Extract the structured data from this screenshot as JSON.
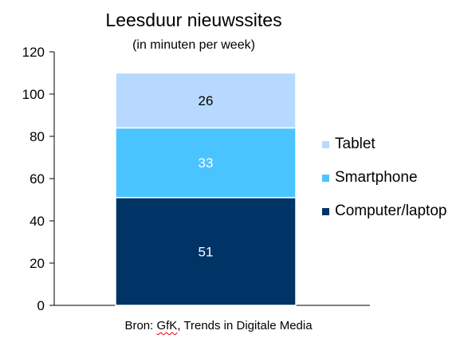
{
  "chart_data": {
    "type": "bar",
    "stacked": true,
    "title": "Leesduur nieuwssites",
    "subtitle": "(in minuten per week)",
    "categories": [
      ""
    ],
    "series": [
      {
        "name": "Computer/laptop",
        "values": [
          51
        ],
        "color": "#003366"
      },
      {
        "name": "Smartphone",
        "values": [
          33
        ],
        "color": "#4ac4ff"
      },
      {
        "name": "Tablet",
        "values": [
          26
        ],
        "color": "#b8d9ff"
      }
    ],
    "ylim": [
      0,
      120
    ],
    "yticks": [
      "0",
      "20",
      "40",
      "60",
      "80",
      "100",
      "120"
    ],
    "grid": false,
    "legend_position": "right",
    "legend_order": [
      "Tablet",
      "Smartphone",
      "Computer/laptop"
    ],
    "data_label_colors": [
      "#ffffff",
      "#ffffff",
      "#000000"
    ]
  },
  "source": {
    "prefix": "Bron: ",
    "gfk": "GfK",
    "rest": ", Trends in Digitale Media"
  }
}
